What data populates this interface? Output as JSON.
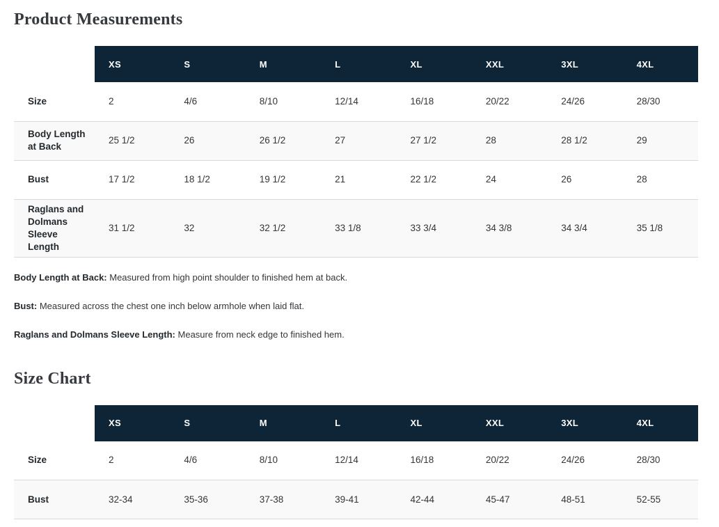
{
  "product_measurements": {
    "title": "Product Measurements",
    "columns": [
      "XS",
      "S",
      "M",
      "L",
      "XL",
      "XXL",
      "3XL",
      "4XL"
    ],
    "rows": [
      {
        "label": "Size",
        "values": [
          "2",
          "4/6",
          "8/10",
          "12/14",
          "16/18",
          "20/22",
          "24/26",
          "28/30"
        ]
      },
      {
        "label": "Body Length at Back",
        "values": [
          "25 1/2",
          "26",
          "26 1/2",
          "27",
          "27 1/2",
          "28",
          "28 1/2",
          "29"
        ]
      },
      {
        "label": "Bust",
        "values": [
          "17 1/2",
          "18 1/2",
          "19 1/2",
          "21",
          "22 1/2",
          "24",
          "26",
          "28"
        ]
      },
      {
        "label": "Raglans and Dolmans Sleeve Length",
        "values": [
          "31 1/2",
          "32",
          "32 1/2",
          "33 1/8",
          "33 3/4",
          "34 3/8",
          "34 3/4",
          "35 1/8"
        ]
      }
    ],
    "notes": [
      {
        "term": "Body Length at Back:",
        "definition": "Measured from high point shoulder to finished hem at back."
      },
      {
        "term": "Bust:",
        "definition": "Measured across the chest one inch below armhole when laid flat."
      },
      {
        "term": "Raglans and Dolmans Sleeve Length:",
        "definition": "Measure from neck edge to finished hem."
      }
    ]
  },
  "size_chart": {
    "title": "Size Chart",
    "columns": [
      "XS",
      "S",
      "M",
      "L",
      "XL",
      "XXL",
      "3XL",
      "4XL"
    ],
    "rows": [
      {
        "label": "Size",
        "values": [
          "2",
          "4/6",
          "8/10",
          "12/14",
          "16/18",
          "20/22",
          "24/26",
          "28/30"
        ]
      },
      {
        "label": "Bust",
        "values": [
          "32-34",
          "35-36",
          "37-38",
          "39-41",
          "42-44",
          "45-47",
          "48-51",
          "52-55"
        ]
      }
    ]
  },
  "colors": {
    "header_bg": "#0d2537",
    "header_text": "#ffffff",
    "row_alt_bg": "#f9f9f9",
    "row_border": "#d9d9d9",
    "title_text": "#363a3f",
    "body_text": "#333639"
  }
}
